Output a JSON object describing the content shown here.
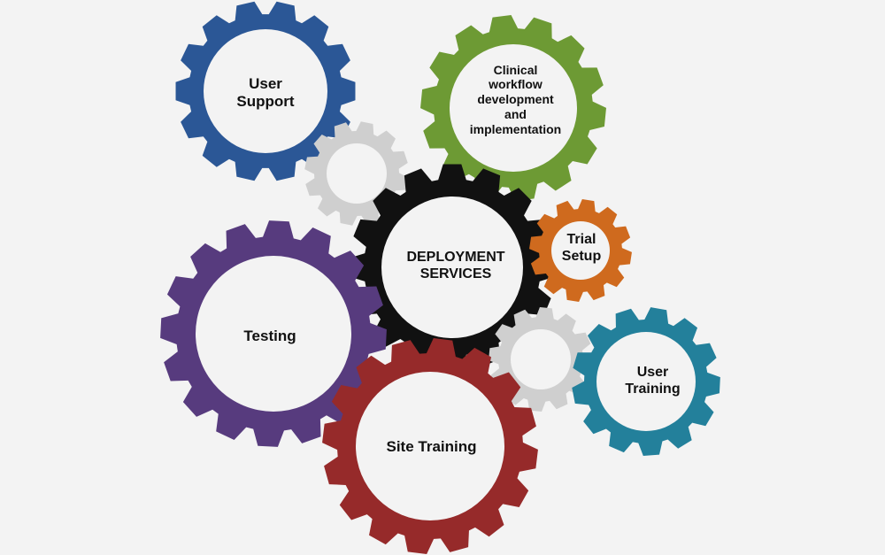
{
  "diagram": {
    "gears": [
      {
        "id": "user-support",
        "label": "User\nSupport",
        "color": "#2b5796"
      },
      {
        "id": "clinical-workflow",
        "label": "Clinical\nworkflow\ndevelopment\nand\nimplementation",
        "color": "#6d9a34"
      },
      {
        "id": "deco-top",
        "label": "",
        "color": "#cfcfcf"
      },
      {
        "id": "deployment-services",
        "label": "DEPLOYMENT\nSERVICES",
        "color": "#111111"
      },
      {
        "id": "trial-setup",
        "label": "Trial\nSetup",
        "color": "#cf6a1e"
      },
      {
        "id": "testing",
        "label": "Testing",
        "color": "#573b7e"
      },
      {
        "id": "deco-bottom",
        "label": "",
        "color": "#cfcfcf"
      },
      {
        "id": "user-training",
        "label": "User\nTraining",
        "color": "#23809b"
      },
      {
        "id": "site-training",
        "label": "Site Training",
        "color": "#962a2a"
      }
    ]
  }
}
